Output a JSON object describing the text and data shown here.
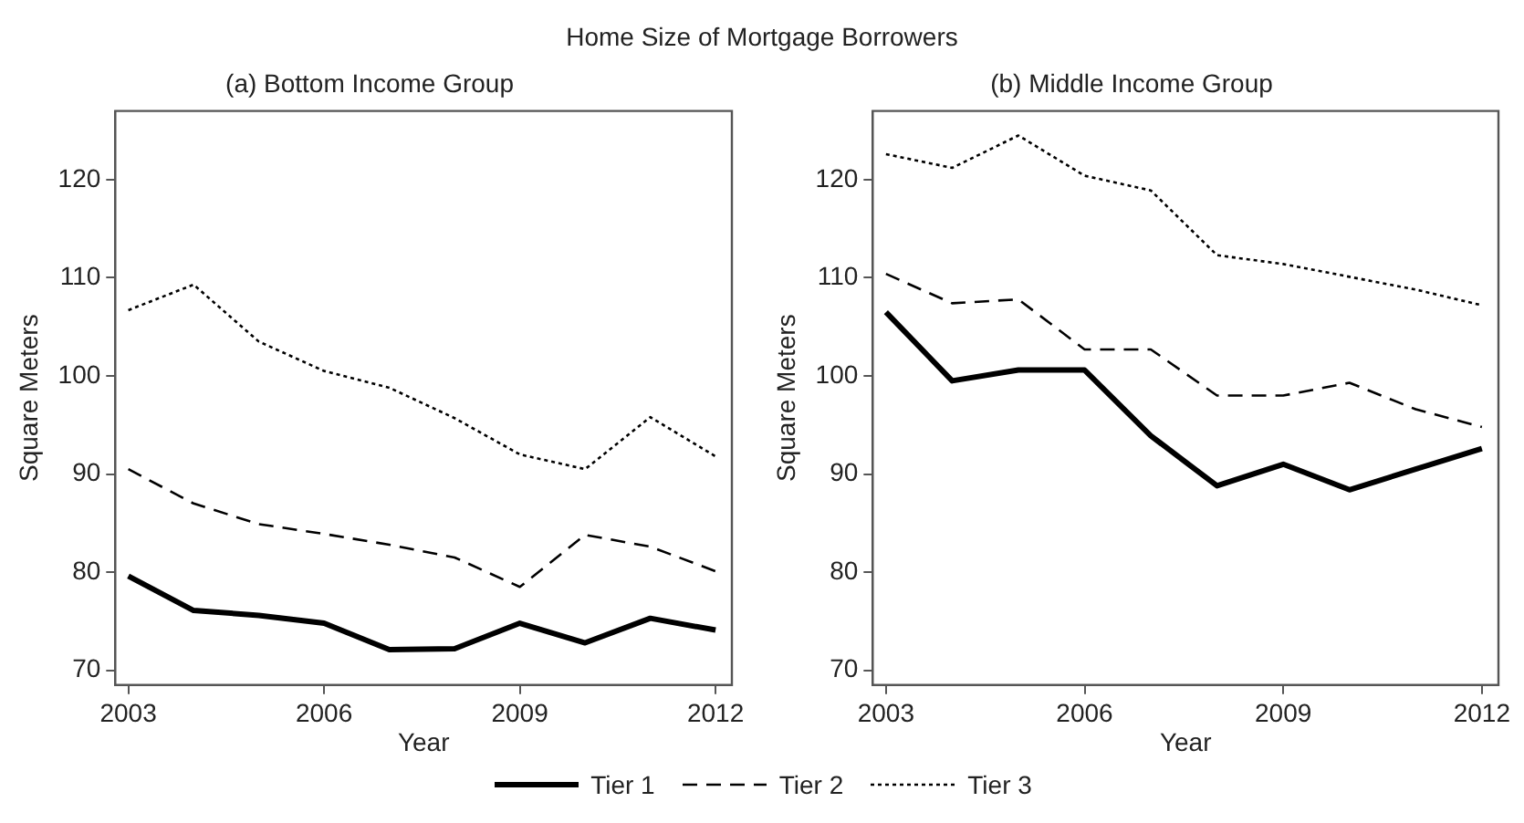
{
  "chart_data": [
    {
      "type": "line",
      "title": "Home Size of Mortgage Borrowers",
      "subtitle": "(a) Bottom Income Group",
      "xlabel": "Year",
      "ylabel": "Square Meters",
      "x": [
        2003,
        2004,
        2005,
        2006,
        2007,
        2008,
        2009,
        2010,
        2011,
        2012
      ],
      "xlim": [
        2002.8,
        2012.25
      ],
      "xticks": [
        2003,
        2006,
        2009,
        2012
      ],
      "ylim": [
        68.5,
        127
      ],
      "yticks": [
        70,
        80,
        90,
        100,
        110,
        120
      ],
      "grid": false,
      "legend": "bottom",
      "marker": "none",
      "series": [
        {
          "name": "Tier 1",
          "color": "#000000",
          "line_style": "solid",
          "values": [
            79.6,
            76.1,
            75.6,
            74.8,
            72.1,
            72.2,
            74.8,
            72.8,
            75.3,
            74.1
          ]
        },
        {
          "name": "Tier 2",
          "color": "#000000",
          "line_style": "dashed",
          "values": [
            90.5,
            87.0,
            84.9,
            83.9,
            82.8,
            81.5,
            78.5,
            83.8,
            82.6,
            80.1
          ]
        },
        {
          "name": "Tier 3",
          "color": "#000000",
          "line_style": "dotted",
          "values": [
            106.7,
            109.3,
            103.5,
            100.5,
            98.8,
            95.7,
            92.0,
            90.5,
            95.8,
            91.8
          ]
        }
      ]
    },
    {
      "type": "line",
      "subtitle": "(b) Middle Income Group",
      "xlabel": "Year",
      "ylabel": "Square Meters",
      "x": [
        2003,
        2004,
        2005,
        2006,
        2007,
        2008,
        2009,
        2010,
        2011,
        2012
      ],
      "xlim": [
        2002.8,
        2012.25
      ],
      "xticks": [
        2003,
        2006,
        2009,
        2012
      ],
      "ylim": [
        68.5,
        127
      ],
      "yticks": [
        70,
        80,
        90,
        100,
        110,
        120
      ],
      "grid": false,
      "marker": "none",
      "series": [
        {
          "color": "#000000",
          "line_style": "solid",
          "values": [
            106.5,
            99.5,
            100.6,
            100.6,
            93.9,
            88.8,
            91.0,
            88.4,
            90.5,
            92.6
          ]
        },
        {
          "color": "#000000",
          "line_style": "dashed",
          "values": [
            110.4,
            107.4,
            107.8,
            102.7,
            102.7,
            98.0,
            98.0,
            99.3,
            96.6,
            94.8
          ]
        },
        {
          "color": "#000000",
          "line_style": "dotted",
          "values": [
            122.6,
            121.2,
            124.5,
            120.4,
            118.9,
            112.3,
            111.4,
            110.1,
            108.8,
            107.2
          ]
        }
      ]
    }
  ]
}
